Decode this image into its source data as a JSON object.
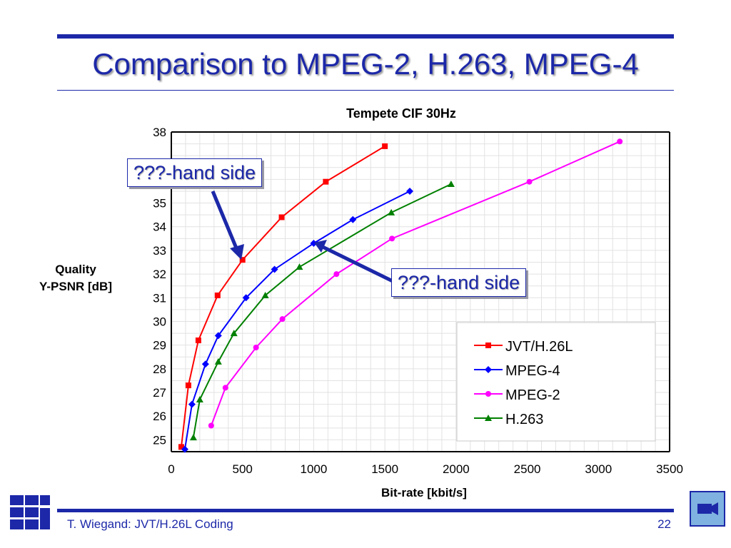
{
  "slide": {
    "title": "Comparison to MPEG-2, H.263, MPEG-4",
    "footer_author": "T. Wiegand: JVT/H.26L Coding",
    "page_number": "22",
    "callout_left": "???-hand side",
    "callout_right": "???-hand side"
  },
  "colors": {
    "accent": "#1c28a8"
  },
  "icons": {
    "logo": "grid-logo-icon",
    "nav": "video-camera-icon"
  },
  "chart_data": {
    "type": "line",
    "title": "Tempete CIF 30Hz",
    "xlabel": "Bit-rate [kbit/s]",
    "ylabel_lines": [
      "Quality",
      "Y-PSNR [dB]"
    ],
    "xlim": [
      0,
      3500
    ],
    "ylim": [
      24.5,
      38
    ],
    "xticks": [
      0,
      500,
      1000,
      1500,
      2000,
      2500,
      3000,
      3500
    ],
    "yticks": [
      25,
      26,
      27,
      28,
      29,
      30,
      31,
      32,
      33,
      34,
      35,
      38
    ],
    "grid": true,
    "legend_position": "bottom-right",
    "series": [
      {
        "name": "JVT/H.26L",
        "color": "#ff0000",
        "marker": "square",
        "x": [
          70,
          120,
          190,
          325,
          500,
          775,
          1085,
          1500
        ],
        "y": [
          24.7,
          27.3,
          29.2,
          31.1,
          32.6,
          34.4,
          35.9,
          37.4
        ]
      },
      {
        "name": "MPEG-4",
        "color": "#0000ff",
        "marker": "diamond",
        "x": [
          95,
          145,
          240,
          330,
          525,
          725,
          1000,
          1275,
          1675
        ],
        "y": [
          24.6,
          26.5,
          28.2,
          29.4,
          31.0,
          32.2,
          33.3,
          34.3,
          35.5
        ]
      },
      {
        "name": "MPEG-2",
        "color": "#ff00ff",
        "marker": "circle",
        "x": [
          280,
          380,
          595,
          780,
          1160,
          1550,
          2515,
          3150
        ],
        "y": [
          25.6,
          27.2,
          28.9,
          30.1,
          32.0,
          33.5,
          35.9,
          37.6
        ]
      },
      {
        "name": "H.263",
        "color": "#008000",
        "marker": "triangle",
        "x": [
          155,
          200,
          330,
          440,
          660,
          900,
          1545,
          1965
        ],
        "y": [
          25.1,
          26.7,
          28.3,
          29.5,
          31.1,
          32.3,
          34.6,
          35.8
        ]
      }
    ]
  }
}
